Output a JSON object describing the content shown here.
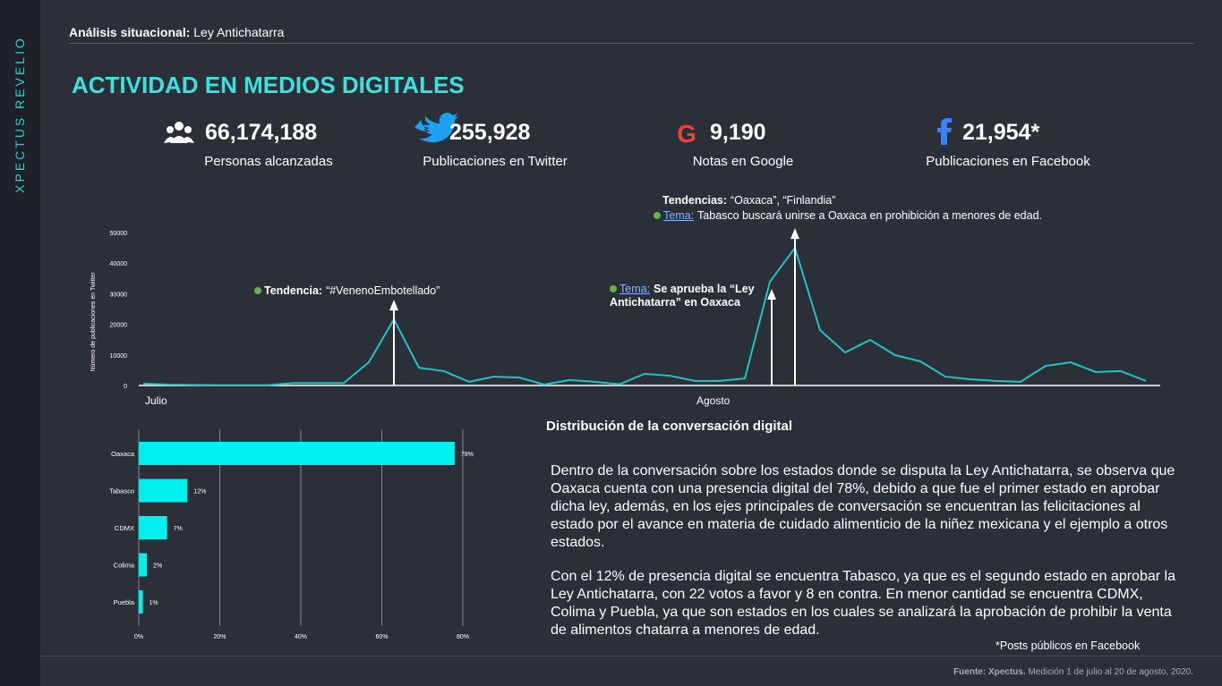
{
  "brand": "XPECTUS REVELIO",
  "header": {
    "label": "Análisis situacional:",
    "title": "Ley Antichatarra"
  },
  "section_title": "ACTIVIDAD EN MEDIOS DIGITALES",
  "kpis": [
    {
      "value": "66,174,188",
      "label": "Personas alcanzadas"
    },
    {
      "value": "255,928",
      "label": "Publicaciones en Twitter"
    },
    {
      "value": "9,190",
      "label": "Notas en Google"
    },
    {
      "value": "21,954*",
      "label": "Publicaciones en Facebook"
    }
  ],
  "chart_data": [
    {
      "type": "line",
      "y_label": "Número de publicaciones en Twitter",
      "color": "#20c4c8",
      "categories": [
        "Julio",
        null,
        null,
        null,
        null,
        null,
        null,
        null,
        null,
        null,
        null,
        null,
        null,
        null,
        null,
        null,
        null,
        null,
        null,
        null,
        null,
        null,
        "Agosto",
        null,
        null,
        null,
        null,
        null,
        null,
        null,
        null,
        null,
        null,
        null,
        null,
        null,
        null,
        null,
        null,
        null,
        null
      ],
      "values": [
        600,
        300,
        200,
        100,
        100,
        100,
        800,
        800,
        800,
        7600,
        21600,
        5800,
        4700,
        1200,
        2900,
        2600,
        300,
        1800,
        1200,
        400,
        3800,
        3200,
        1500,
        1500,
        2300,
        33900,
        45000,
        18100,
        10800,
        14900,
        9900,
        7900,
        2900,
        2000,
        1500,
        1200,
        6400,
        7600,
        4400,
        4700,
        1500
      ],
      "ylim": [
        0,
        50000
      ],
      "yticks": [
        0,
        10000,
        20000,
        30000,
        40000,
        50000
      ],
      "annotations": [
        {
          "label": "Tendencia:",
          "text": "“#VenenoEmbotellado”"
        },
        {
          "label": "Tema:",
          "text": "Se aprueba la “Ley Antichatarra” en Oaxaca"
        },
        {
          "label": "Tendencias:",
          "text": "“Oaxaca”, “Finlandia”",
          "label2": "Tema:",
          "text2": "Tabasco buscará unirse a Oaxaca en prohibición a menores de edad."
        }
      ]
    },
    {
      "type": "hbar",
      "color": "#00f0f0",
      "categories": [
        "Oaxaca",
        "Tabasco",
        "CDMX",
        "Colima",
        "Puebla"
      ],
      "values": [
        78,
        12,
        7,
        2,
        1
      ],
      "value_labels": [
        "78%",
        "12%",
        "7%",
        "2%",
        "1%"
      ],
      "xlim": [
        0,
        80
      ],
      "xticks": [
        {
          "value": 0,
          "label": "0%"
        },
        {
          "value": 20,
          "label": "20%"
        },
        {
          "value": 40,
          "label": "40%"
        },
        {
          "value": 60,
          "label": "60%"
        },
        {
          "value": 80,
          "label": "80%"
        }
      ],
      "grid": true
    }
  ],
  "text": {
    "title": "Distribución de la conversación digital",
    "paragraphs": [
      "Dentro de la conversación sobre los estados donde se disputa la Ley Antichatarra, se observa que Oaxaca cuenta con una presencia digital del 78%, debido a que fue el primer estado en aprobar dicha ley, además, en los ejes principales de conversación se encuentran las felicitaciones al estado por el avance en materia de cuidado alimenticio de la niñez mexicana y el ejemplo a otros estados.",
      "Con el 12% de presencia digital se encuentra Tabasco, ya que es el segundo estado en aprobar la Ley Antichatarra, con 22 votos a favor y 8 en contra. En menor cantidad se encuentra CDMX, Colima y Puebla, ya que son estados en los cuales se analizará la aprobación de prohibir la venta de alimentos chatarra a menores de edad."
    ],
    "note": "*Posts públicos en Facebook"
  },
  "footer": {
    "label": "Fuente: Xpectus.",
    "text": "Medición 1 de julio al 20 de agosto, 2020."
  }
}
